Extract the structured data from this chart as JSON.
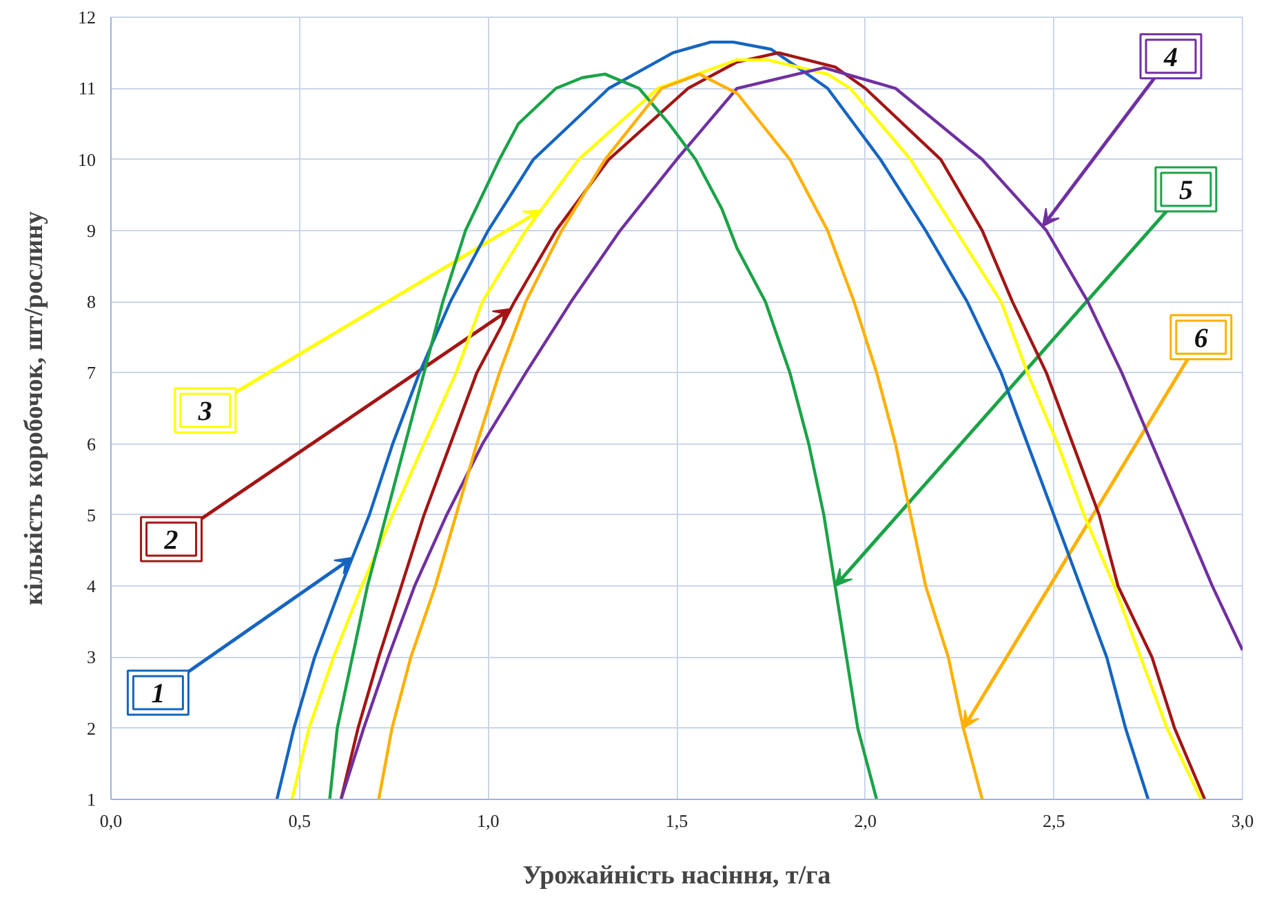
{
  "chart_data": {
    "type": "line",
    "xlabel": "Урожайність насіння, т/га",
    "ylabel": "кількість коробочок, шт/рослину",
    "xlim": [
      0,
      3
    ],
    "ylim": [
      1,
      12
    ],
    "xticks": [
      {
        "value": 0,
        "label": "0,0"
      },
      {
        "value": 0.5,
        "label": "0,5"
      },
      {
        "value": 1,
        "label": "1,0"
      },
      {
        "value": 1.5,
        "label": "1,5"
      },
      {
        "value": 2,
        "label": "2,0"
      },
      {
        "value": 2.5,
        "label": "2,5"
      },
      {
        "value": 3,
        "label": "3,0"
      }
    ],
    "yticks": [
      1,
      2,
      3,
      4,
      5,
      6,
      7,
      8,
      9,
      10,
      11,
      12
    ],
    "grid": true,
    "line_style": "solid",
    "series": [
      {
        "name": "1",
        "color": "#1565c0",
        "x": [
          0.44,
          0.485,
          0.54,
          0.61,
          0.685,
          0.747,
          0.818,
          0.9,
          1.0,
          1.12,
          1.32,
          1.49,
          1.59,
          1.65,
          1.75,
          1.83,
          1.9,
          2.04,
          2.16,
          2.27,
          2.36,
          2.43,
          2.5,
          2.57,
          2.64,
          2.69,
          2.75
        ],
        "values": [
          1,
          2,
          3,
          4,
          5,
          6,
          7,
          8,
          9,
          10,
          11,
          11.5,
          11.65,
          11.65,
          11.55,
          11.26,
          11,
          10,
          9,
          8,
          7,
          6,
          5,
          4,
          3,
          2,
          1
        ]
      },
      {
        "name": "2",
        "color": "#a31515",
        "x": [
          0.61,
          0.655,
          0.71,
          0.77,
          0.83,
          0.9,
          0.97,
          1.07,
          1.18,
          1.32,
          1.53,
          1.66,
          1.77,
          1.92,
          2.0,
          2.2,
          2.31,
          2.39,
          2.48,
          2.55,
          2.62,
          2.67,
          2.76,
          2.82,
          2.9
        ],
        "values": [
          1,
          2,
          3,
          4,
          5,
          6,
          7,
          8,
          9,
          10,
          11,
          11.37,
          11.5,
          11.3,
          11,
          10,
          9,
          8,
          7,
          6,
          5,
          4,
          3,
          2,
          1
        ]
      },
      {
        "name": "3",
        "color": "#ffff00",
        "x": [
          0.48,
          0.525,
          0.59,
          0.665,
          0.747,
          0.83,
          0.915,
          0.985,
          1.1,
          1.24,
          1.45,
          1.66,
          1.74,
          1.9,
          1.96,
          2.12,
          2.24,
          2.36,
          2.43,
          2.51,
          2.58,
          2.66,
          2.73,
          2.8,
          2.89
        ],
        "values": [
          1,
          2,
          3,
          4,
          5,
          6,
          7,
          8,
          9,
          10,
          11,
          11.4,
          11.4,
          11.2,
          11,
          10,
          9,
          8,
          7,
          6,
          5,
          4,
          3,
          2,
          1
        ]
      },
      {
        "name": "4",
        "color": "#7030a0",
        "x": [
          0.61,
          0.67,
          0.735,
          0.805,
          0.89,
          0.985,
          1.1,
          1.22,
          1.35,
          1.5,
          1.66,
          1.89,
          2.08,
          2.31,
          2.48,
          2.59,
          2.68,
          2.76,
          2.84,
          2.92,
          3.0
        ],
        "values": [
          1,
          2,
          3,
          4,
          5,
          6,
          7,
          8,
          9,
          10,
          11,
          11.29,
          11,
          10,
          9,
          8,
          7,
          6,
          5,
          4,
          3.1
        ]
      },
      {
        "name": "5",
        "color": "#1aa347",
        "x": [
          0.58,
          0.6,
          0.64,
          0.68,
          0.73,
          0.78,
          0.83,
          0.88,
          0.94,
          1.03,
          1.08,
          1.18,
          1.25,
          1.31,
          1.4,
          1.48,
          1.55,
          1.62,
          1.66,
          1.735,
          1.8,
          1.85,
          1.89,
          1.92,
          1.95,
          1.98,
          2.03
        ],
        "values": [
          1,
          2,
          3,
          4,
          5,
          6,
          7,
          8,
          9,
          10,
          10.5,
          11,
          11.15,
          11.2,
          11,
          10.5,
          10,
          9.3,
          8.75,
          8,
          7,
          6,
          5,
          4,
          3,
          2,
          1
        ]
      },
      {
        "name": "6",
        "color": "#ffb000",
        "x": [
          0.71,
          0.745,
          0.795,
          0.86,
          0.915,
          0.97,
          1.03,
          1.1,
          1.195,
          1.31,
          1.46,
          1.56,
          1.66,
          1.8,
          1.9,
          1.97,
          2.03,
          2.08,
          2.12,
          2.16,
          2.22,
          2.26,
          2.31
        ],
        "values": [
          1,
          2,
          3,
          4,
          5,
          6,
          7,
          8,
          9,
          10,
          11,
          11.2,
          10.93,
          10,
          9,
          8,
          7,
          6,
          5,
          4,
          3,
          2,
          1
        ]
      }
    ]
  }
}
